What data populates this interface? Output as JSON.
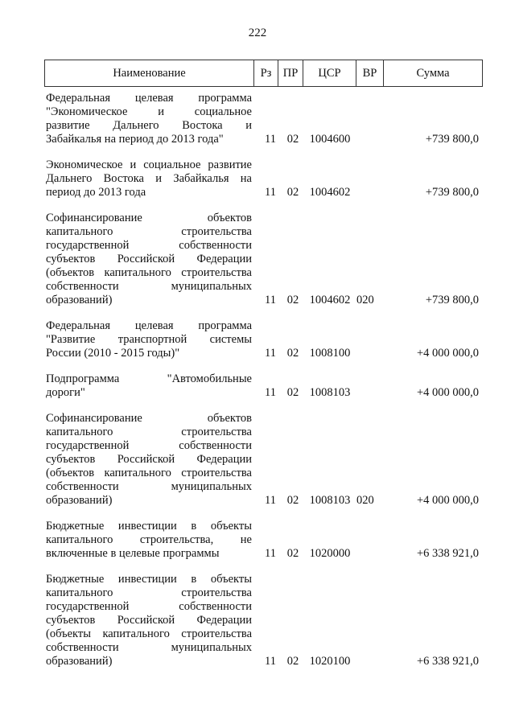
{
  "page_number": "222",
  "header": {
    "name": "Наименование",
    "rz": "Рз",
    "pr": "ПР",
    "csr": "ЦСР",
    "vr": "ВР",
    "sum": "Сумма"
  },
  "rows": [
    {
      "lines": [
        "Федеральная целевая программа",
        "\"Экономическое и социальное",
        "развитие Дальнего Востока и",
        "Забайкалья на период до 2013 года\""
      ],
      "rz": "11",
      "pr": "02",
      "csr": "1004600",
      "vr": "",
      "sum": "+739 800,0"
    },
    {
      "lines": [
        "Экономическое и социальное развитие",
        "Дальнего Востока и Забайкалья на",
        "период до 2013 года"
      ],
      "rz": "11",
      "pr": "02",
      "csr": "1004602",
      "vr": "",
      "sum": "+739 800,0"
    },
    {
      "lines": [
        "Софинансирование объектов",
        "капитального строительства",
        "государственной собственности",
        "субъектов Российской Федерации",
        "(объектов капитального строительства",
        "собственности муниципальных",
        "образований)"
      ],
      "rz": "11",
      "pr": "02",
      "csr": "1004602",
      "vr": "020",
      "sum": "+739 800,0"
    },
    {
      "lines": [
        "Федеральная целевая программа",
        "\"Развитие транспортной системы",
        "России (2010 - 2015 годы)\""
      ],
      "rz": "11",
      "pr": "02",
      "csr": "1008100",
      "vr": "",
      "sum": "+4 000 000,0"
    },
    {
      "lines": [
        "Подпрограмма \"Автомобильные",
        "дороги\""
      ],
      "rz": "11",
      "pr": "02",
      "csr": "1008103",
      "vr": "",
      "sum": "+4 000 000,0"
    },
    {
      "lines": [
        "Софинансирование объектов",
        "капитального строительства",
        "государственной собственности",
        "субъектов Российской Федерации",
        "(объектов капитального строительства",
        "собственности муниципальных",
        "образований)"
      ],
      "rz": "11",
      "pr": "02",
      "csr": "1008103",
      "vr": "020",
      "sum": "+4 000 000,0"
    },
    {
      "lines": [
        "Бюджетные инвестиции в объекты",
        "капитального строительства, не",
        "включенные в целевые программы"
      ],
      "rz": "11",
      "pr": "02",
      "csr": "1020000",
      "vr": "",
      "sum": "+6 338 921,0"
    },
    {
      "lines": [
        "Бюджетные инвестиции в объекты",
        "капитального строительства",
        "государственной собственности",
        "субъектов Российской Федерации",
        "(объекты капитального строительства",
        "собственности муниципальных",
        "образований)"
      ],
      "rz": "11",
      "pr": "02",
      "csr": "1020100",
      "vr": "",
      "sum": "+6 338 921,0"
    }
  ]
}
